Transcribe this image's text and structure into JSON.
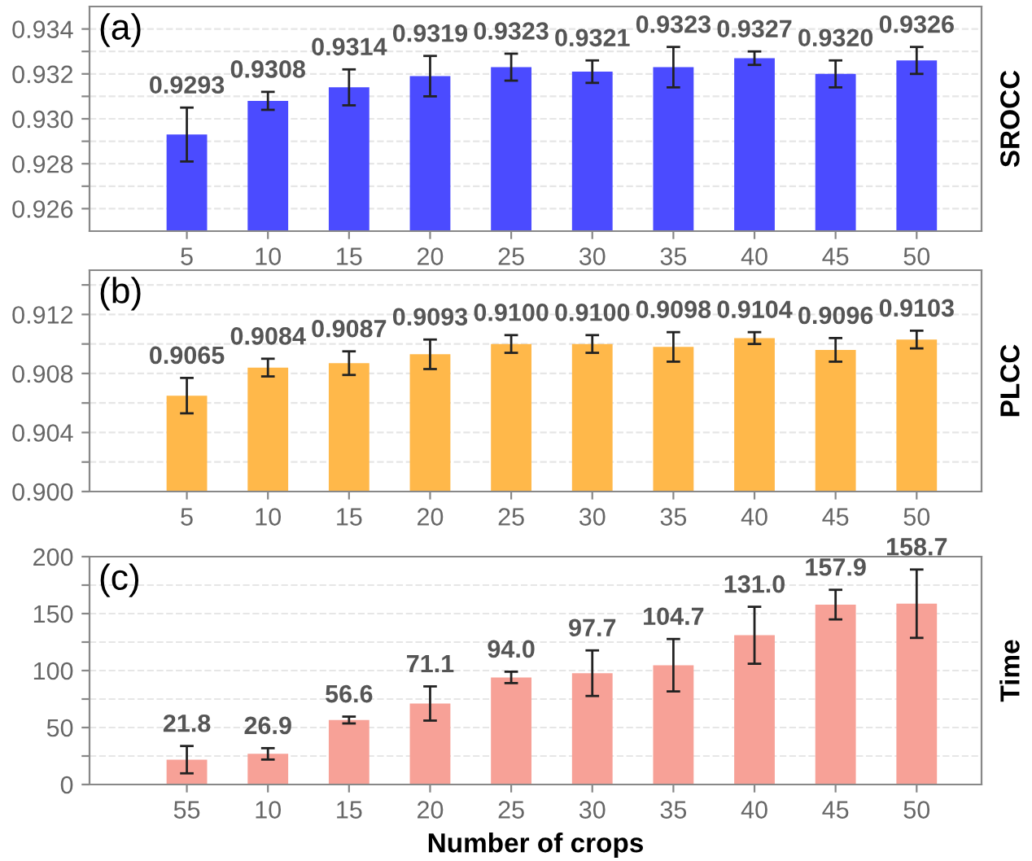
{
  "chart_data": [
    {
      "type": "bar",
      "categories": [
        "5",
        "10",
        "15",
        "20",
        "25",
        "30",
        "35",
        "40",
        "45",
        "50"
      ],
      "ylabel": "SROCC",
      "annotations": [
        "(a)"
      ],
      "series": [
        {
          "color": "#4b4bff",
          "values": [
            0.9293,
            0.9308,
            0.9314,
            0.9319,
            0.9323,
            0.9321,
            0.9323,
            0.9327,
            0.932,
            0.9326
          ],
          "errors": [
            0.0012,
            0.0004,
            0.0008,
            0.0009,
            0.0006,
            0.0005,
            0.0009,
            0.0003,
            0.0006,
            0.0006
          ],
          "value_labels": [
            "0.9293",
            "0.9308",
            "0.9314",
            "0.9319",
            "0.9323",
            "0.9321",
            "0.9323",
            "0.9327",
            "0.9320",
            "0.9326"
          ]
        }
      ],
      "ylim": [
        0.925,
        0.935
      ],
      "yticks": [
        0.926,
        {
          "value": 0.927,
          "label": null
        },
        0.928,
        {
          "value": 0.929,
          "label": null
        },
        {
          "value": 0.93,
          "label": "0.930"
        },
        {
          "value": 0.931,
          "label": null
        },
        0.932,
        {
          "value": 0.933,
          "label": null
        },
        0.934
      ],
      "grid": "y"
    },
    {
      "type": "bar",
      "categories": [
        "5",
        "10",
        "15",
        "20",
        "25",
        "30",
        "35",
        "40",
        "45",
        "50"
      ],
      "ylabel": "PLCC",
      "annotations": [
        "(b)"
      ],
      "series": [
        {
          "color": "#ffb84a",
          "values": [
            0.9065,
            0.9084,
            0.9087,
            0.9093,
            0.91,
            0.91,
            0.9098,
            0.9104,
            0.9096,
            0.9103
          ],
          "errors": [
            0.0012,
            0.0006,
            0.0008,
            0.001,
            0.0006,
            0.0006,
            0.001,
            0.0004,
            0.0008,
            0.0006
          ],
          "value_labels": [
            "0.9065",
            "0.9084",
            "0.9087",
            "0.9093",
            "0.9100",
            "0.9100",
            "0.9098",
            "0.9104",
            "0.9096",
            "0.9103"
          ]
        }
      ],
      "ylim": [
        0.9,
        0.915
      ],
      "yticks": [
        {
          "value": 0.9,
          "label": "0.900"
        },
        {
          "value": 0.902,
          "label": null
        },
        0.904,
        {
          "value": 0.906,
          "label": null
        },
        0.908,
        {
          "value": 0.91,
          "label": null
        },
        0.912,
        {
          "value": 0.914,
          "label": null
        }
      ],
      "grid": "y"
    },
    {
      "type": "bar",
      "categories": [
        "55",
        "10",
        "15",
        "20",
        "25",
        "30",
        "35",
        "40",
        "45",
        "50"
      ],
      "ylabel": "Time",
      "xlabel": "Number of crops",
      "annotations": [
        "(c)"
      ],
      "series": [
        {
          "color": "#f7a197",
          "values": [
            21.8,
            26.9,
            56.6,
            71.1,
            94.0,
            97.7,
            104.7,
            131.0,
            157.9,
            158.7
          ],
          "errors": [
            12,
            5,
            3,
            15,
            5,
            20,
            23,
            25,
            13,
            30
          ],
          "value_labels": [
            "21.8",
            "26.9",
            "56.6",
            "71.1",
            "94.0",
            "97.7",
            "104.7",
            "131.0",
            "157.9",
            "158.7"
          ]
        }
      ],
      "ylim": [
        0,
        200
      ],
      "yticks": [
        0,
        {
          "value": 25,
          "label": null
        },
        50,
        {
          "value": 75,
          "label": null
        },
        100,
        {
          "value": 125,
          "label": null
        },
        150,
        {
          "value": 175,
          "label": null
        },
        200
      ],
      "grid": "y"
    }
  ]
}
